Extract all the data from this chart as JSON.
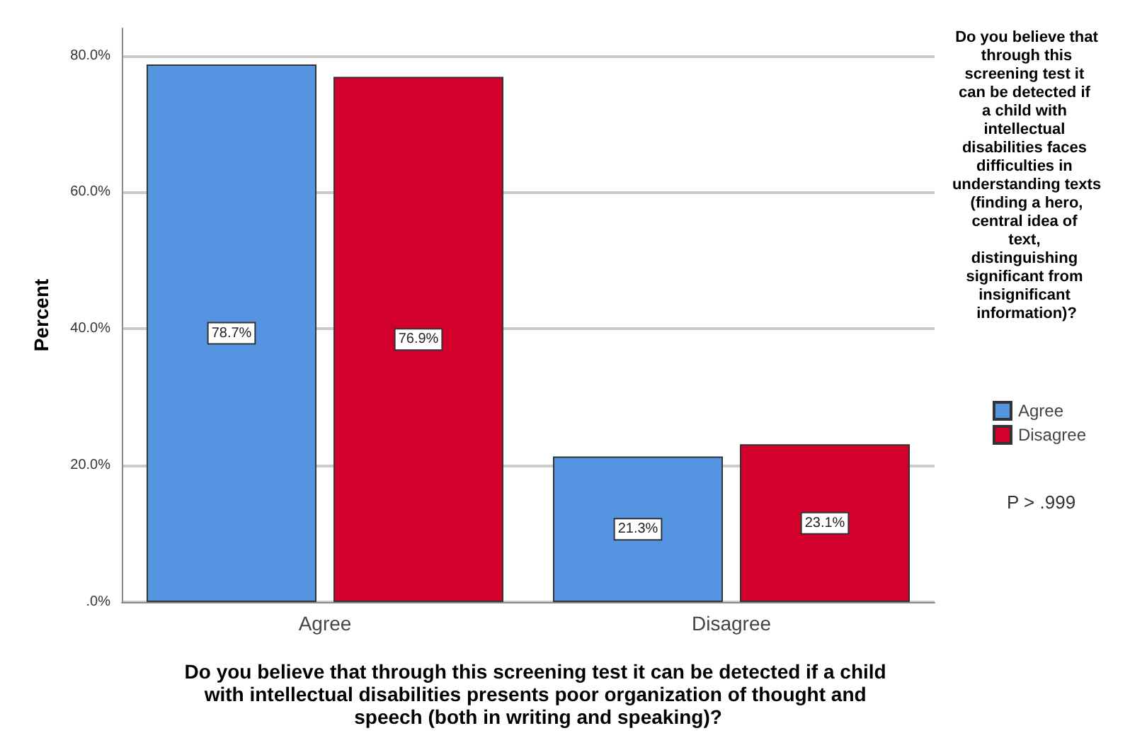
{
  "chart_data": {
    "type": "bar",
    "ylabel": "Percent",
    "xlabel": "Do you believe that through this screening test it can be detected if a child with intellectual disabilities presents poor organization of thought and speech (both in writing and speaking)?",
    "legend_title": "Do you believe that through this screening test it can be detected if a child with intellectual disabilities faces difficulties in understanding texts (finding a hero, central idea of text, distinguishing significant from insignificant information)?",
    "categories": [
      "Agree",
      "Disagree"
    ],
    "series": [
      {
        "name": "Agree",
        "color": "#5594e0",
        "values": [
          78.7,
          21.3
        ],
        "value_labels": [
          "78.7%",
          "21.3%"
        ]
      },
      {
        "name": "Disagree",
        "color": "#d2002b",
        "values": [
          76.9,
          23.1
        ],
        "value_labels": [
          "76.9%",
          "23.1%"
        ]
      }
    ],
    "ylim": [
      0,
      84
    ],
    "yticks": [
      {
        "value": 0,
        "label": ".0%"
      },
      {
        "value": 20,
        "label": "20.0%"
      },
      {
        "value": 40,
        "label": "40.0%"
      },
      {
        "value": 60,
        "label": "60.0%"
      },
      {
        "value": 80,
        "label": "80.0%"
      }
    ],
    "grid": "y",
    "legend": "right",
    "annotations": [
      "P > .999"
    ]
  }
}
